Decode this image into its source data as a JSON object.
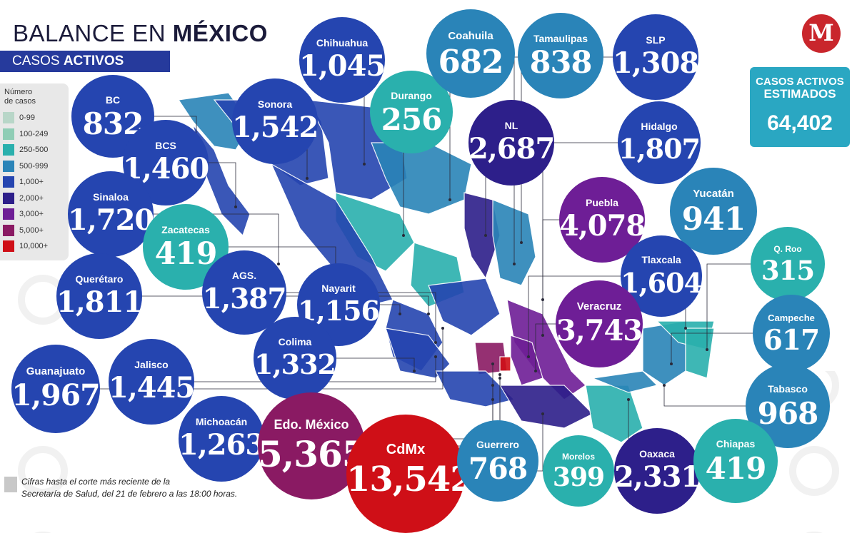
{
  "title": {
    "light": "BALANCE EN ",
    "bold": "MÉXICO"
  },
  "subtitle": {
    "light": "CASOS ",
    "bold": "ACTIVOS"
  },
  "legend": {
    "title_line1": "Número",
    "title_line2": "de casos",
    "items": [
      {
        "label": "0-99",
        "color": "#b8d6c8"
      },
      {
        "label": "100-249",
        "color": "#8fcdb5"
      },
      {
        "label": "250-500",
        "color": "#2ab0ad"
      },
      {
        "label": "500-999",
        "color": "#2a84b8"
      },
      {
        "label": "1,000+",
        "color": "#2545b0"
      },
      {
        "label": "2,000+",
        "color": "#2d1f8a"
      },
      {
        "label": "3,000+",
        "color": "#6e1e96"
      },
      {
        "label": "5,000+",
        "color": "#8a1a63"
      },
      {
        "label": "10,000+",
        "color": "#cf0f17"
      }
    ]
  },
  "states": [
    {
      "name": "BC",
      "value": "832"
    },
    {
      "name": "BCS",
      "value": "1,460"
    },
    {
      "name": "Sinaloa",
      "value": "1,720"
    },
    {
      "name": "Sonora",
      "value": "1,542"
    },
    {
      "name": "Chihuahua",
      "value": "1,045"
    },
    {
      "name": "Durango",
      "value": "256"
    },
    {
      "name": "Coahuila",
      "value": "682"
    },
    {
      "name": "Tamaulipas",
      "value": "838"
    },
    {
      "name": "SLP",
      "value": "1,308"
    },
    {
      "name": "NL",
      "value": "2,687"
    },
    {
      "name": "Hidalgo",
      "value": "1,807"
    },
    {
      "name": "Puebla",
      "value": "4,078"
    },
    {
      "name": "Yucatán",
      "value": "941"
    },
    {
      "name": "Zacatecas",
      "value": "419"
    },
    {
      "name": "Querétaro",
      "value": "1,811"
    },
    {
      "name": "AGS.",
      "value": "1,387"
    },
    {
      "name": "Nayarit",
      "value": "1,156"
    },
    {
      "name": "Tlaxcala",
      "value": "1,604"
    },
    {
      "name": "Q. Roo",
      "value": "315"
    },
    {
      "name": "Veracruz",
      "value": "3,743"
    },
    {
      "name": "Campeche",
      "value": "617"
    },
    {
      "name": "Colima",
      "value": "1,332"
    },
    {
      "name": "Guanajuato",
      "value": "1,967"
    },
    {
      "name": "Jalisco",
      "value": "1,445"
    },
    {
      "name": "Tabasco",
      "value": "968"
    },
    {
      "name": "Michoacán",
      "value": "1,263"
    },
    {
      "name": "Edo. México",
      "value": "5,365"
    },
    {
      "name": "CdMx",
      "value": "13,542"
    },
    {
      "name": "Guerrero",
      "value": "768"
    },
    {
      "name": "Morelos",
      "value": "399"
    },
    {
      "name": "Oaxaca",
      "value": "2,331"
    },
    {
      "name": "Chiapas",
      "value": "419"
    }
  ],
  "estimated": {
    "label_line1": "CASOS ACTIVOS",
    "label_line2": "ESTIMADOS",
    "value": "64,402"
  },
  "logo_letter": "M",
  "note": {
    "line1": "Cifras hasta el corte más reciente de la",
    "line2": "Secretaría de Salud, del 21 de febrero a las 18:00 horas."
  }
}
